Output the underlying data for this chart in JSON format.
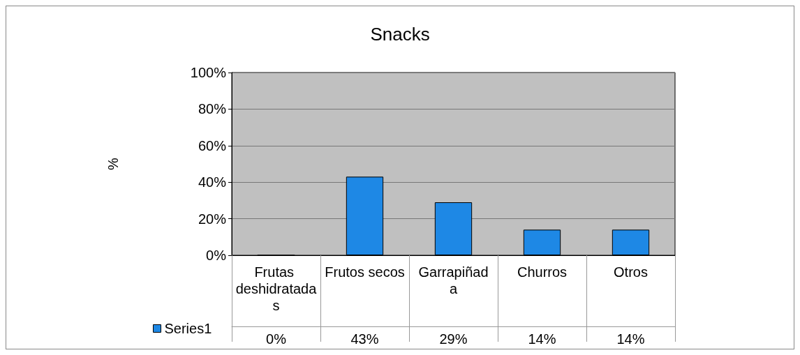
{
  "chart_data": {
    "type": "bar",
    "title": "Snacks",
    "ylabel": "%",
    "categories": [
      "Frutas deshidratadas",
      "Frutos secos",
      "Garrapiñada",
      "Churros",
      "Otros"
    ],
    "series": [
      {
        "name": "Series1",
        "color": "#1e88e5",
        "values": [
          0,
          43,
          29,
          14,
          14
        ],
        "value_labels": [
          "0%",
          "43%",
          "29%",
          "14%",
          "14%"
        ]
      }
    ],
    "ylim": [
      0,
      100
    ],
    "yticks": [
      {
        "value": 0,
        "label": "0%"
      },
      {
        "value": 20,
        "label": "20%"
      },
      {
        "value": 40,
        "label": "40%"
      },
      {
        "value": 60,
        "label": "60%"
      },
      {
        "value": 80,
        "label": "80%"
      },
      {
        "value": 100,
        "label": "100%"
      }
    ],
    "grid": "y",
    "legend": "bottom left"
  }
}
